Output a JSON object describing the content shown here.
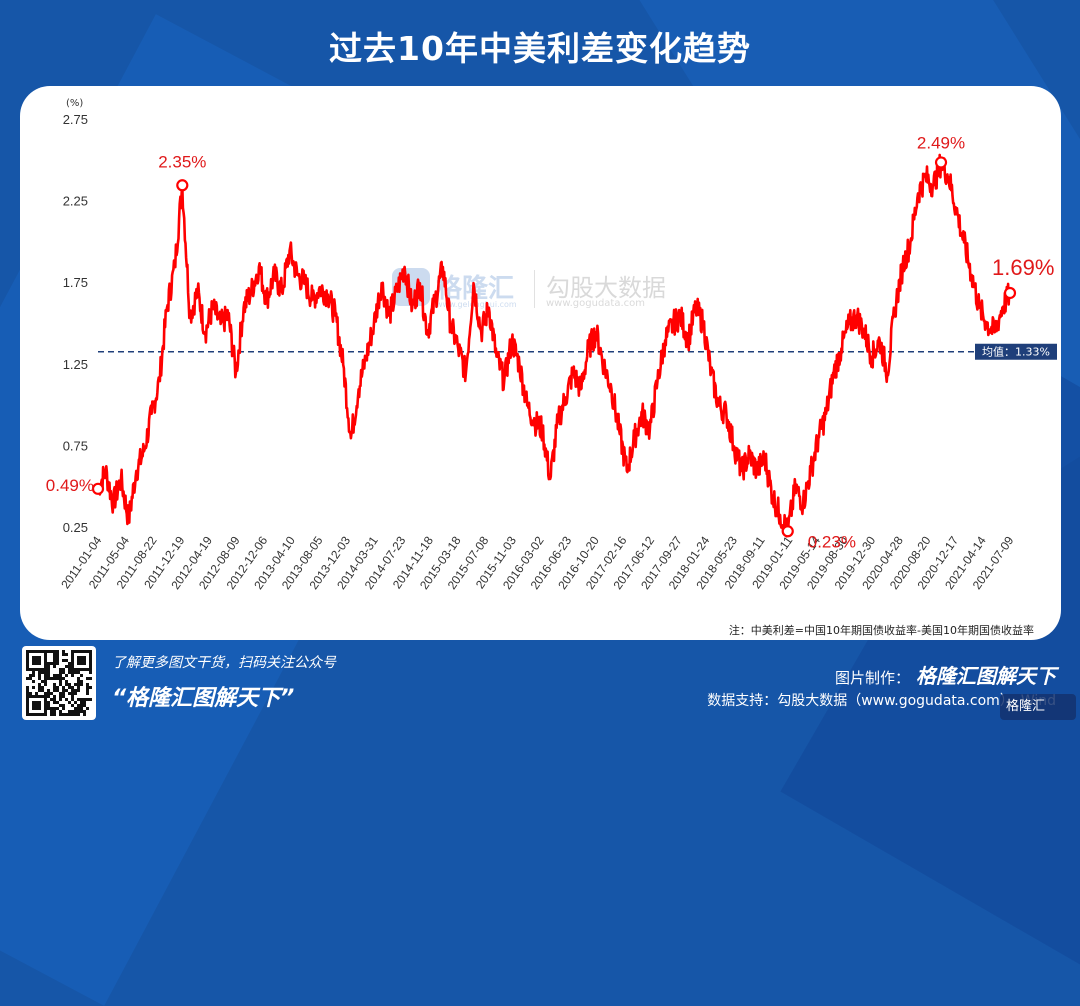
{
  "title": "过去10年中美利差变化趋势",
  "note": "注：中美利差=中国10年期国债收益率-美国10年期国债收益率",
  "watermark": {
    "brand": "格隆汇",
    "brand_sub": "www.gelonghui.com",
    "gogu": "勾股大数据",
    "gogu_sub": "www.gogudata.com"
  },
  "footer": {
    "follow_text": "了解更多图文干货，扫码关注公众号",
    "slogan": "“格隆汇图解天下”",
    "made_by_label": "图片制作：",
    "made_by_brand": "格隆汇图解天下",
    "data_support": "数据支持：勾股大数据（www.gogudata.com）、Wind",
    "corner_badge": "格隆汇"
  },
  "colors": {
    "background": "#1656a8",
    "line": "#ff0000",
    "mean_line": "#1f3f7a",
    "label": "#e0191a",
    "mean_badge": "#1f3f7a"
  },
  "chart_data": {
    "type": "line",
    "ylabel": "(%)",
    "ylim": [
      0.25,
      2.75
    ],
    "yticks": [
      "2.75",
      "2.25",
      "1.75",
      "1.25",
      "0.75",
      "0.25"
    ],
    "xticks": [
      "2011-01-04",
      "2011-05-04",
      "2011-08-22",
      "2011-12-19",
      "2012-04-19",
      "2012-08-09",
      "2012-12-06",
      "2013-04-10",
      "2013-08-05",
      "2013-12-03",
      "2014-03-31",
      "2014-07-23",
      "2014-11-18",
      "2015-03-18",
      "2015-07-08",
      "2015-11-03",
      "2016-03-02",
      "2016-06-23",
      "2016-10-20",
      "2017-02-16",
      "2017-06-12",
      "2017-09-27",
      "2018-01-24",
      "2018-05-23",
      "2018-09-11",
      "2019-01-11",
      "2019-05-14",
      "2019-08-30",
      "2019-12-30",
      "2020-04-28",
      "2020-08-20",
      "2020-12-17",
      "2021-04-14",
      "2021-07-09"
    ],
    "series": [
      {
        "values": [
          0.49,
          0.6,
          0.4,
          0.55,
          0.3,
          0.6,
          0.72,
          0.95,
          1.15,
          1.6,
          1.85,
          2.35,
          1.55,
          1.7,
          1.45,
          1.6,
          1.5,
          1.55,
          1.2,
          1.6,
          1.7,
          1.85,
          1.65,
          1.8,
          1.7,
          1.95,
          1.8,
          1.75,
          1.65,
          1.72,
          1.68,
          1.55,
          1.25,
          0.8,
          1.1,
          1.3,
          1.5,
          1.75,
          1.55,
          1.7,
          1.85,
          1.6,
          1.75,
          1.45,
          1.65,
          1.85,
          1.5,
          1.35,
          1.2,
          1.75,
          1.45,
          1.6,
          1.3,
          1.15,
          1.4,
          1.25,
          1.0,
          0.9,
          0.85,
          0.55,
          0.9,
          1.05,
          1.2,
          1.1,
          1.35,
          1.45,
          1.25,
          1.1,
          0.85,
          0.6,
          0.8,
          0.95,
          0.85,
          1.15,
          1.4,
          1.5,
          1.55,
          1.4,
          1.6,
          1.5,
          1.2,
          1.0,
          0.95,
          0.75,
          0.6,
          0.7,
          0.6,
          0.68,
          0.45,
          0.33,
          0.23,
          0.5,
          0.4,
          0.6,
          0.8,
          0.95,
          1.2,
          1.35,
          1.5,
          1.55,
          1.45,
          1.3,
          1.4,
          1.2,
          1.6,
          1.85,
          2.0,
          2.3,
          2.4,
          2.35,
          2.49,
          2.4,
          2.2,
          2.0,
          1.8,
          1.6,
          1.5,
          1.45,
          1.6,
          1.69
        ]
      }
    ],
    "mean": 1.33,
    "mean_label": "均值：1.33%",
    "annotations": [
      "0.49%",
      "2.35%",
      "0.23%",
      "2.49%",
      "1.69%"
    ]
  }
}
